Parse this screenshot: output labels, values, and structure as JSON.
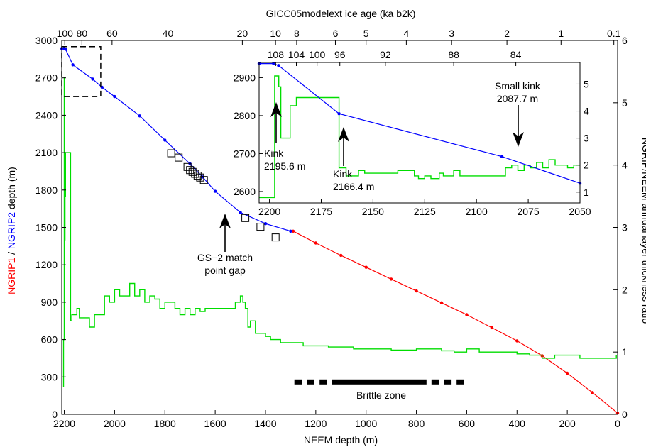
{
  "chart_data": {
    "type": "line",
    "main": {
      "xlabel": "NEEM depth (m)",
      "ylabel_left_parts": [
        {
          "text": "NGRIP1",
          "color": "#ff0000"
        },
        {
          "text": " / ",
          "color": "#000000"
        },
        {
          "text": "NGRIP2",
          "color": "#0000ff"
        },
        {
          "text": " depth (m)",
          "color": "#000000"
        }
      ],
      "ylabel_right": "NGRIP/NEEM annual layer thickness ratio",
      "top_axis_label": "GICC05modelext ice age (ka b2k)",
      "xlim": [
        2210,
        0
      ],
      "ylim_left": [
        0,
        3000
      ],
      "ylim_right": [
        0,
        6
      ],
      "xticks": [
        2200,
        2000,
        1800,
        1600,
        1400,
        1200,
        1000,
        800,
        600,
        400,
        200,
        0
      ],
      "yticks_left": [
        0,
        300,
        600,
        900,
        1200,
        1500,
        1800,
        2100,
        2400,
        2700,
        3000
      ],
      "yticks_right": [
        0,
        1,
        2,
        3,
        4,
        5,
        6
      ],
      "top_ticks": [
        {
          "label": "100",
          "neem_depth": 2198
        },
        {
          "label": "80",
          "neem_depth": 2130
        },
        {
          "label": "60",
          "neem_depth": 2010
        },
        {
          "label": "40",
          "neem_depth": 1788
        },
        {
          "label": "20",
          "neem_depth": 1492
        },
        {
          "label": "10",
          "neem_depth": 1360
        },
        {
          "label": "8",
          "neem_depth": 1276
        },
        {
          "label": "6",
          "neem_depth": 1122
        },
        {
          "label": "5",
          "neem_depth": 1000
        },
        {
          "label": "4",
          "neem_depth": 840
        },
        {
          "label": "3",
          "neem_depth": 660
        },
        {
          "label": "2",
          "neem_depth": 440
        },
        {
          "label": "1",
          "neem_depth": 225
        },
        {
          "label": "0.1",
          "neem_depth": 15
        }
      ],
      "series": [
        {
          "name": "NGRIP1",
          "color": "#ff0000",
          "axis": "left",
          "x": [
            1290,
            1200,
            1100,
            1000,
            900,
            800,
            700,
            600,
            500,
            400,
            300,
            200,
            100,
            0
          ],
          "y": [
            1470,
            1375,
            1275,
            1180,
            1085,
            990,
            895,
            800,
            695,
            590,
            470,
            330,
            175,
            10
          ]
        },
        {
          "name": "NGRIP2",
          "color": "#0000ff",
          "axis": "left",
          "x": [
            2210,
            2200,
            2195,
            2166,
            2087,
            2050,
            2000,
            1900,
            1800,
            1700,
            1650,
            1600,
            1500,
            1400,
            1300
          ],
          "y": [
            2935,
            2935,
            2930,
            2805,
            2690,
            2625,
            2550,
            2395,
            2200,
            2010,
            1905,
            1790,
            1620,
            1530,
            1470
          ]
        },
        {
          "name": "NGRIP/NEEM annual layer thickness ratio",
          "color": "#00dd00",
          "axis": "right",
          "x": [
            2205,
            2203,
            2200,
            2199,
            2197,
            2195,
            2193,
            2190,
            2188,
            2186,
            2175,
            2170,
            2150,
            2140,
            2120,
            2100,
            2080,
            2060,
            2040,
            2020,
            2000,
            1980,
            1960,
            1940,
            1920,
            1900,
            1880,
            1860,
            1840,
            1820,
            1800,
            1780,
            1760,
            1740,
            1720,
            1700,
            1680,
            1660,
            1640,
            1620,
            1600,
            1580,
            1560,
            1540,
            1520,
            1500,
            1490,
            1480,
            1470,
            1460,
            1440,
            1420,
            1400,
            1380,
            1360,
            1340,
            1320,
            1300,
            1250,
            1200,
            1150,
            1100,
            1050,
            1000,
            950,
            900,
            850,
            800,
            750,
            700,
            650,
            600,
            550,
            500,
            450,
            400,
            350,
            300,
            250,
            200,
            150,
            100,
            50,
            20,
            5
          ],
          "y": [
            0.45,
            1.2,
            5.4,
            2.8,
            3.5,
            4.2,
            4.2,
            4.2,
            4.2,
            4.2,
            1.5,
            1.6,
            1.7,
            1.55,
            1.55,
            1.4,
            1.6,
            1.6,
            1.9,
            1.8,
            2.0,
            1.9,
            1.9,
            2.1,
            1.9,
            2.0,
            1.8,
            1.9,
            1.85,
            1.7,
            1.8,
            1.8,
            1.7,
            1.6,
            1.7,
            1.6,
            1.7,
            1.65,
            1.7,
            1.7,
            1.7,
            1.7,
            1.7,
            1.7,
            1.8,
            1.9,
            1.8,
            1.7,
            1.4,
            1.5,
            1.3,
            1.3,
            1.25,
            1.2,
            1.2,
            1.15,
            1.15,
            1.15,
            1.1,
            1.1,
            1.08,
            1.08,
            1.05,
            1.05,
            1.05,
            1.03,
            1.03,
            1.05,
            1.05,
            1.02,
            1.0,
            1.05,
            1.0,
            1.0,
            1.0,
            0.97,
            0.95,
            0.9,
            0.95,
            0.95,
            0.9,
            0.9,
            0.9,
            0.9,
            0.95
          ]
        }
      ],
      "match_point_squares": [
        {
          "x": 1775,
          "y": 2095
        },
        {
          "x": 1745,
          "y": 2060
        },
        {
          "x": 1710,
          "y": 1985
        },
        {
          "x": 1700,
          "y": 1960
        },
        {
          "x": 1690,
          "y": 1945
        },
        {
          "x": 1680,
          "y": 1930
        },
        {
          "x": 1670,
          "y": 1915
        },
        {
          "x": 1660,
          "y": 1900
        },
        {
          "x": 1645,
          "y": 1880
        },
        {
          "x": 1480,
          "y": 1575
        },
        {
          "x": 1420,
          "y": 1505
        },
        {
          "x": 1360,
          "y": 1420
        }
      ],
      "brittle_zone": {
        "label": "Brittle zone",
        "y": 260,
        "segments": [
          [
            1285,
            1255
          ],
          [
            1235,
            1205
          ],
          [
            1185,
            1155
          ],
          [
            1135,
            760
          ],
          [
            740,
            710
          ],
          [
            690,
            660
          ],
          [
            640,
            610
          ]
        ]
      },
      "annotations": [
        {
          "lines": [
            "GS−2 match",
            "point gap"
          ]
        }
      ]
    },
    "inset": {
      "xlim": [
        2205,
        2050
      ],
      "ylim_left": [
        2570,
        2940
      ],
      "ylim_right": [
        0.6,
        5.8
      ],
      "xticks": [
        2200,
        2175,
        2150,
        2125,
        2100,
        2075,
        2050
      ],
      "yticks_left": [
        2600,
        2700,
        2800,
        2900
      ],
      "yticks_right": [
        1,
        2,
        3,
        4,
        5
      ],
      "top_ticks": [
        {
          "label": "108",
          "neem_depth": 2197
        },
        {
          "label": "104",
          "neem_depth": 2187
        },
        {
          "label": "100",
          "neem_depth": 2177
        },
        {
          "label": "96",
          "neem_depth": 2166
        },
        {
          "label": "92",
          "neem_depth": 2144
        },
        {
          "label": "88",
          "neem_depth": 2111
        },
        {
          "label": "84",
          "neem_depth": 2081
        }
      ],
      "ngrip_line": {
        "color": "#0000ff",
        "x": [
          2205,
          2198,
          2195.6,
          2166.4,
          2087.7,
          2050
        ],
        "y": [
          2937,
          2937,
          2932,
          2805,
          2692,
          2622
        ]
      },
      "ratio_line": {
        "color": "#00dd00",
        "x": [
          2205,
          2199,
          2197.5,
          2195.5,
          2194.5,
          2191.5,
          2190,
          2188,
          2187,
          2185,
          2167,
          2166.4,
          2165,
          2163,
          2160,
          2157,
          2154,
          2150,
          2145,
          2138,
          2130,
          2128,
          2125,
          2122,
          2118,
          2116,
          2114,
          2111,
          2108,
          2100,
          2088,
          2086,
          2083,
          2080,
          2077,
          2074,
          2071,
          2068,
          2065,
          2062,
          2059,
          2056,
          2053,
          2050
        ],
        "y": [
          0.8,
          0.8,
          5.3,
          4.9,
          3.0,
          3.0,
          4.2,
          4.2,
          4.5,
          4.5,
          4.5,
          1.9,
          1.9,
          1.6,
          1.6,
          1.8,
          1.7,
          1.7,
          1.7,
          1.8,
          1.6,
          1.5,
          1.6,
          1.5,
          1.7,
          1.6,
          1.6,
          1.8,
          1.6,
          1.6,
          1.6,
          1.9,
          2.0,
          1.8,
          2.0,
          1.9,
          2.1,
          1.9,
          2.2,
          2.0,
          2.0,
          1.9,
          2.0,
          2.0
        ]
      },
      "annotations": [
        {
          "lines": [
            "Kink",
            "2195.6 m"
          ],
          "depth": 2195.6
        },
        {
          "lines": [
            "Kink",
            "2166.4 m"
          ],
          "depth": 2166.4
        },
        {
          "lines": [
            "Small kink",
            "2087.7 m"
          ],
          "depth": 2087.7
        }
      ]
    }
  }
}
